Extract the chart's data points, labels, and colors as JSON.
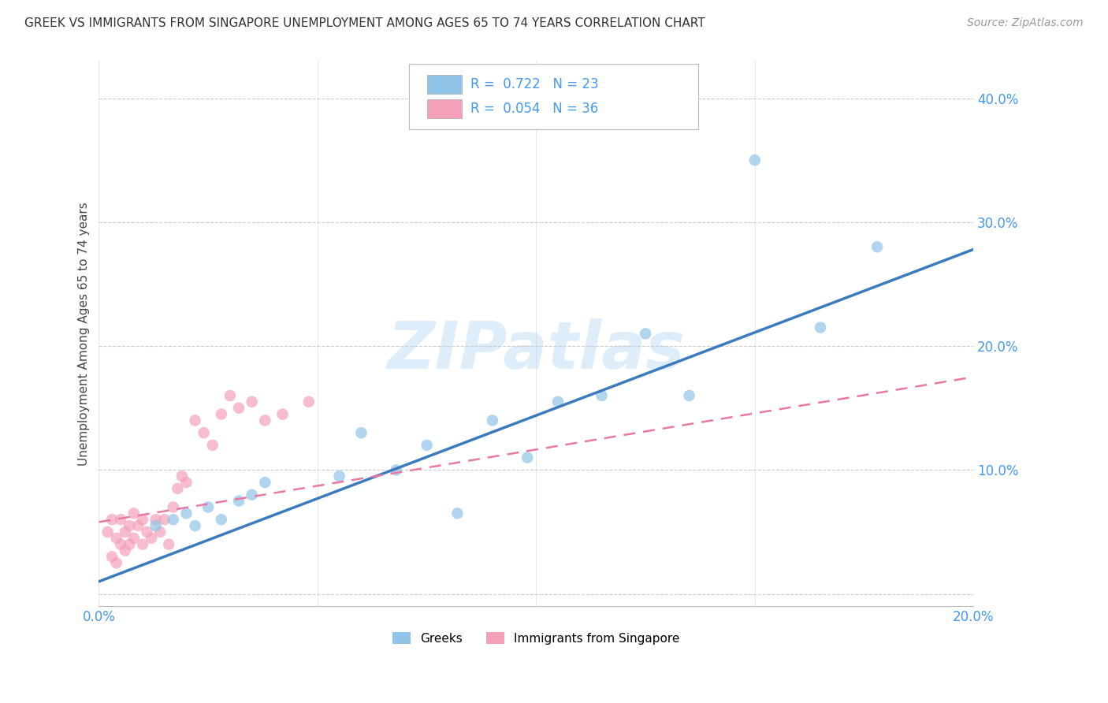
{
  "title": "GREEK VS IMMIGRANTS FROM SINGAPORE UNEMPLOYMENT AMONG AGES 65 TO 74 YEARS CORRELATION CHART",
  "source": "Source: ZipAtlas.com",
  "ylabel": "Unemployment Among Ages 65 to 74 years",
  "xlim": [
    0.0,
    0.2
  ],
  "ylim": [
    -0.01,
    0.43
  ],
  "xticks": [
    0.0,
    0.05,
    0.1,
    0.15,
    0.2
  ],
  "yticks": [
    0.0,
    0.1,
    0.2,
    0.3,
    0.4
  ],
  "ytick_labels": [
    "",
    "10.0%",
    "20.0%",
    "30.0%",
    "40.0%"
  ],
  "xtick_labels": [
    "0.0%",
    "",
    "",
    "",
    "20.0%"
  ],
  "blue_color": "#90c4e8",
  "pink_color": "#f4a0b8",
  "blue_line_color": "#3a7bbf",
  "pink_line_color": "#e87aa0",
  "watermark": "ZIPatlas",
  "blue_scatter_x": [
    0.013,
    0.017,
    0.02,
    0.022,
    0.025,
    0.028,
    0.032,
    0.035,
    0.038,
    0.055,
    0.06,
    0.068,
    0.075,
    0.082,
    0.09,
    0.098,
    0.105,
    0.115,
    0.125,
    0.135,
    0.15,
    0.165,
    0.178
  ],
  "blue_scatter_y": [
    0.055,
    0.06,
    0.065,
    0.055,
    0.07,
    0.06,
    0.075,
    0.08,
    0.09,
    0.095,
    0.13,
    0.1,
    0.12,
    0.065,
    0.14,
    0.11,
    0.155,
    0.16,
    0.21,
    0.16,
    0.35,
    0.215,
    0.28
  ],
  "pink_scatter_x": [
    0.002,
    0.003,
    0.003,
    0.004,
    0.004,
    0.005,
    0.005,
    0.006,
    0.006,
    0.007,
    0.007,
    0.008,
    0.008,
    0.009,
    0.01,
    0.01,
    0.011,
    0.012,
    0.013,
    0.014,
    0.015,
    0.016,
    0.017,
    0.018,
    0.019,
    0.02,
    0.022,
    0.024,
    0.026,
    0.028,
    0.03,
    0.032,
    0.035,
    0.038,
    0.042,
    0.048
  ],
  "pink_scatter_y": [
    0.05,
    0.06,
    0.03,
    0.045,
    0.025,
    0.06,
    0.04,
    0.05,
    0.035,
    0.055,
    0.04,
    0.045,
    0.065,
    0.055,
    0.06,
    0.04,
    0.05,
    0.045,
    0.06,
    0.05,
    0.06,
    0.04,
    0.07,
    0.085,
    0.095,
    0.09,
    0.14,
    0.13,
    0.12,
    0.145,
    0.16,
    0.15,
    0.155,
    0.14,
    0.145,
    0.155
  ],
  "blue_line_x": [
    0.0,
    0.2
  ],
  "blue_line_y": [
    0.01,
    0.278
  ],
  "pink_line_x": [
    0.0,
    0.2
  ],
  "pink_line_y": [
    0.058,
    0.175
  ]
}
